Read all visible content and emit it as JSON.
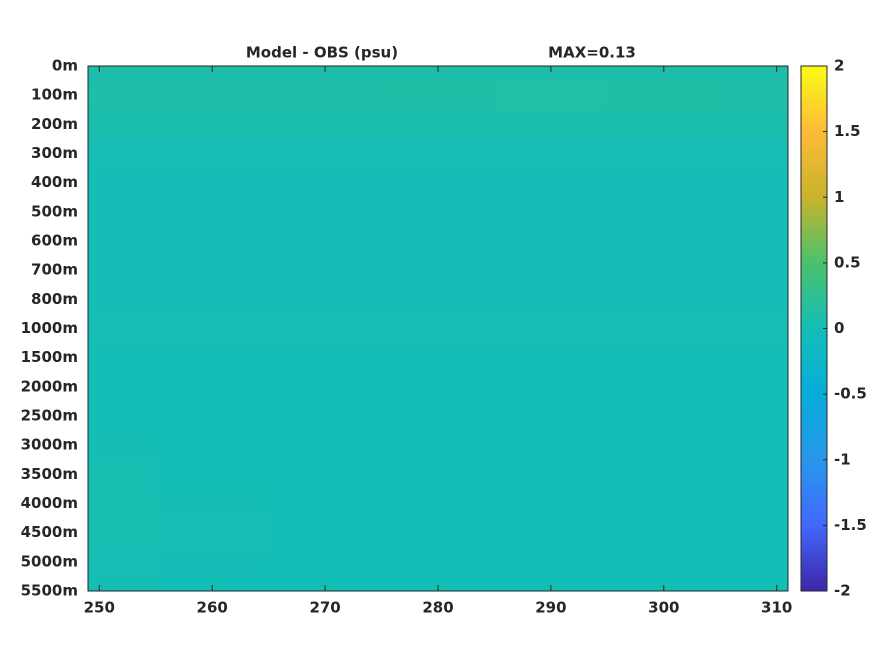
{
  "chart_data": {
    "type": "heatmap",
    "title": "Model - OBS (psu)",
    "annotation": "MAX=0.13",
    "categories": [
      "0m",
      "100m",
      "200m",
      "300m",
      "400m",
      "500m",
      "600m",
      "700m",
      "800m",
      "1000m",
      "1500m",
      "2000m",
      "2500m",
      "3000m",
      "3500m",
      "4000m",
      "4500m",
      "5000m",
      "5500m"
    ],
    "x": [
      250,
      260,
      270,
      280,
      290,
      300,
      310
    ],
    "values": [
      [
        0.08,
        0.08,
        0.08,
        0.08,
        0.08,
        0.08,
        0.08
      ],
      [
        0.1,
        0.1,
        0.1,
        0.11,
        0.13,
        0.12,
        0.1
      ],
      [
        0.07,
        0.07,
        0.07,
        0.07,
        0.07,
        0.07,
        0.07
      ],
      [
        0.03,
        0.03,
        0.03,
        0.03,
        0.03,
        0.03,
        0.03
      ],
      [
        0.01,
        0.01,
        0.01,
        0.01,
        0.01,
        0.01,
        0.01
      ],
      [
        0.01,
        0.01,
        0.01,
        0.01,
        0.01,
        0.01,
        0.01
      ],
      [
        0.01,
        0.01,
        0.01,
        0.01,
        0.01,
        0.01,
        0.01
      ],
      [
        0.01,
        0.01,
        0.01,
        0.01,
        0.01,
        0.01,
        0.01
      ],
      [
        0.01,
        0.01,
        0.01,
        0.01,
        0.01,
        0.01,
        0.01
      ],
      [
        0.03,
        0.03,
        0.03,
        0.03,
        0.03,
        0.03,
        0.03
      ],
      [
        0,
        0,
        0,
        0,
        0,
        0,
        0
      ],
      [
        0,
        0,
        0,
        0,
        0,
        0,
        0
      ],
      [
        0,
        0,
        0,
        0,
        0,
        0,
        0
      ],
      [
        0.02,
        0,
        0,
        0,
        0,
        0,
        0
      ],
      [
        0.04,
        0,
        0,
        0,
        0,
        0,
        0
      ],
      [
        0.04,
        0.02,
        0,
        0,
        0,
        0,
        0
      ],
      [
        0.04,
        0.03,
        0,
        0,
        0,
        0,
        0
      ],
      [
        0.03,
        0.01,
        0,
        0,
        0,
        0,
        0
      ],
      [
        0.02,
        0,
        0,
        0,
        0,
        0,
        0
      ]
    ],
    "xlim": [
      249,
      311
    ],
    "xticks": [
      250,
      260,
      270,
      280,
      290,
      300,
      310
    ],
    "clim": [
      -2,
      2
    ],
    "cticks": [
      -2,
      -1.5,
      -1,
      -0.5,
      0,
      0.5,
      1,
      1.5,
      2
    ],
    "colormap": [
      "#3e26a8",
      "#4367fd",
      "#2797eb",
      "#08acda",
      "#13beb7",
      "#4ac16d",
      "#c8b42c",
      "#fdbb39",
      "#f9fb15"
    ]
  }
}
